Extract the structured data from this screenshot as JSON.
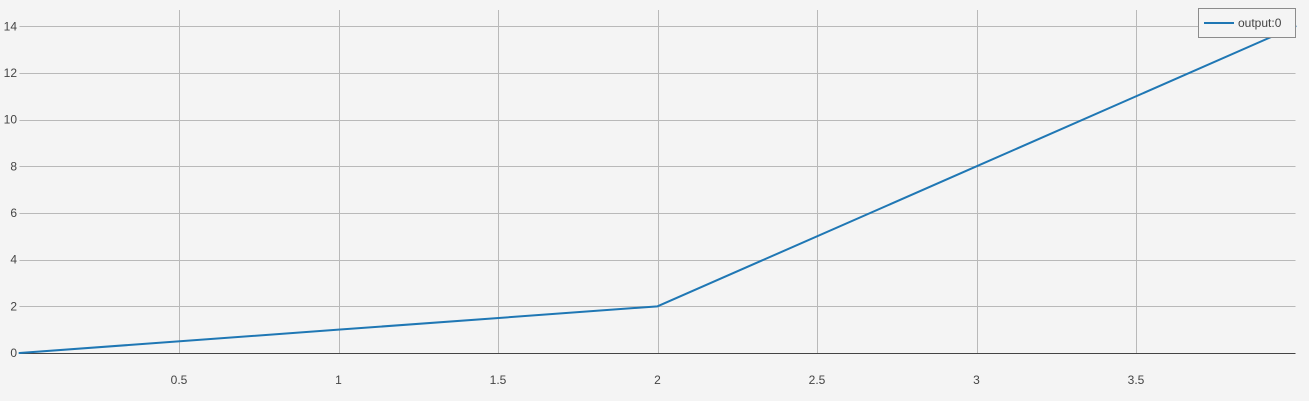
{
  "chart_data": {
    "type": "line",
    "title": "",
    "xlabel": "",
    "ylabel": "",
    "xlim": [
      0,
      4
    ],
    "ylim": [
      0,
      14.7
    ],
    "x_ticks": [
      0.5,
      1,
      1.5,
      2,
      2.5,
      3,
      3.5
    ],
    "x_tick_labels": [
      "0.5",
      "1",
      "1.5",
      "2",
      "2.5",
      "3",
      "3.5"
    ],
    "y_ticks": [
      0,
      2,
      4,
      6,
      8,
      10,
      12,
      14
    ],
    "y_tick_labels": [
      "0",
      "2",
      "4",
      "6",
      "8",
      "10",
      "12",
      "14"
    ],
    "grid": true,
    "legend_position": "top-right",
    "series": [
      {
        "name": "output:0",
        "color": "#1f77b4",
        "x": [
          0,
          1,
          2,
          3,
          4
        ],
        "y": [
          0,
          1,
          2,
          8,
          14
        ]
      }
    ]
  }
}
